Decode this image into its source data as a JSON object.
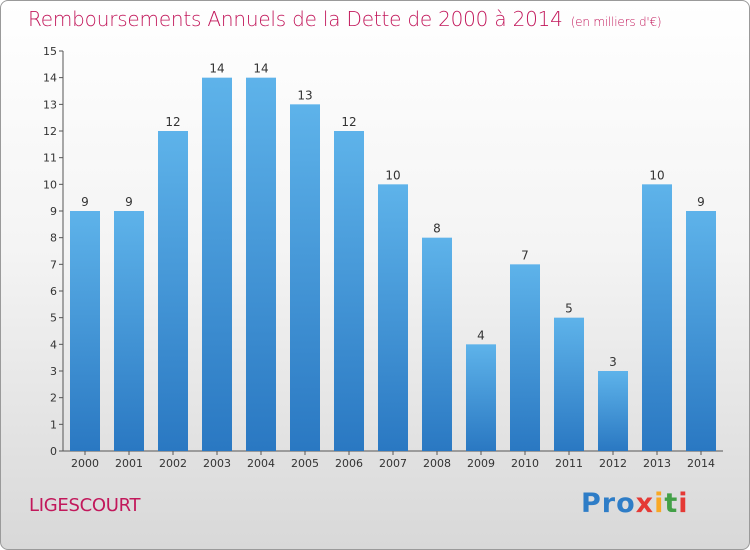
{
  "header": {
    "title": "Remboursements Annuels de la Dette de 2000 à 2014",
    "unit": "(en milliers d'€)"
  },
  "footer": {
    "commune": "LIGESCOURT",
    "logo": {
      "p1": "Pro",
      "p2": "x",
      "p3": "i",
      "p4": "t",
      "p5": "i"
    }
  },
  "colors": {
    "bar_top": "#5eb3ea",
    "bar_bottom": "#2a78c2",
    "title": "#c2185b"
  },
  "chart_data": {
    "type": "bar",
    "title": "Remboursements Annuels de la Dette de 2000 à 2014",
    "ylabel": "",
    "xlabel": "",
    "ylim": [
      0,
      15
    ],
    "yticks": [
      0,
      1,
      2,
      3,
      4,
      5,
      6,
      7,
      8,
      9,
      10,
      11,
      12,
      13,
      14,
      15
    ],
    "grid": false,
    "categories": [
      "2000",
      "2001",
      "2002",
      "2003",
      "2004",
      "2005",
      "2006",
      "2007",
      "2008",
      "2009",
      "2010",
      "2011",
      "2012",
      "2013",
      "2014"
    ],
    "values": [
      9,
      9,
      12,
      14,
      14,
      13,
      12,
      10,
      8,
      4,
      7,
      5,
      3,
      10,
      9
    ],
    "labels": [
      "9",
      "9",
      "12",
      "14",
      "14",
      "13",
      "12",
      "10",
      "8",
      "4",
      "7",
      "5",
      "3",
      "10",
      "9"
    ]
  }
}
